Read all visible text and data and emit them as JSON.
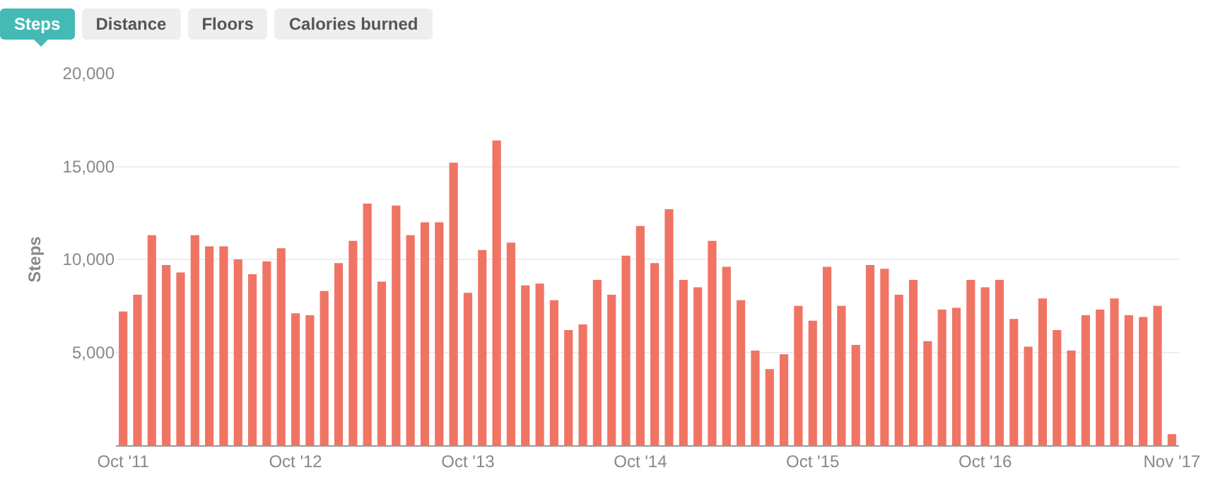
{
  "chart_data": {
    "type": "bar",
    "ylabel": "Steps",
    "annotations": [
      "Steps",
      "Distance",
      "Floors",
      "Calories burned"
    ],
    "categories": [
      "Oct '11",
      null,
      null,
      null,
      null,
      null,
      null,
      null,
      null,
      null,
      null,
      null,
      "Oct '12",
      null,
      null,
      null,
      null,
      null,
      null,
      null,
      null,
      null,
      null,
      null,
      "Oct '13",
      null,
      null,
      null,
      null,
      null,
      null,
      null,
      null,
      null,
      null,
      null,
      "Oct '14",
      null,
      null,
      null,
      null,
      null,
      null,
      null,
      null,
      null,
      null,
      null,
      "Oct '15",
      null,
      null,
      null,
      null,
      null,
      null,
      null,
      null,
      null,
      null,
      null,
      "Oct '16",
      null,
      null,
      null,
      null,
      null,
      null,
      null,
      null,
      null,
      null,
      null,
      null,
      "Nov '17"
    ],
    "values": [
      7200,
      8100,
      11300,
      9700,
      9300,
      11300,
      10700,
      10700,
      10000,
      9200,
      9900,
      10600,
      7100,
      7000,
      8300,
      9800,
      11000,
      13000,
      8800,
      12900,
      11300,
      12000,
      12000,
      15200,
      8200,
      10500,
      16400,
      10900,
      8600,
      8700,
      7800,
      6200,
      6500,
      8900,
      8100,
      10200,
      11800,
      9800,
      12700,
      8900,
      8500,
      11000,
      9600,
      7800,
      5100,
      4100,
      4900,
      7500,
      6700,
      9600,
      7500,
      5400,
      9700,
      9500,
      8100,
      8900,
      5600,
      7300,
      7400,
      8900,
      8500,
      8900,
      6800,
      5300,
      7900,
      6200,
      5100,
      7000,
      7300,
      7900,
      7000,
      6900,
      7500,
      600
    ],
    "color": "#f07464",
    "ylim": [
      0,
      20000
    ],
    "yticks": [
      {
        "value": 5000,
        "label": "5,000"
      },
      {
        "value": 10000,
        "label": "10,000"
      },
      {
        "value": 15000,
        "label": "15,000"
      },
      {
        "value": 20000,
        "label": "20,000"
      }
    ],
    "grid": "y"
  }
}
